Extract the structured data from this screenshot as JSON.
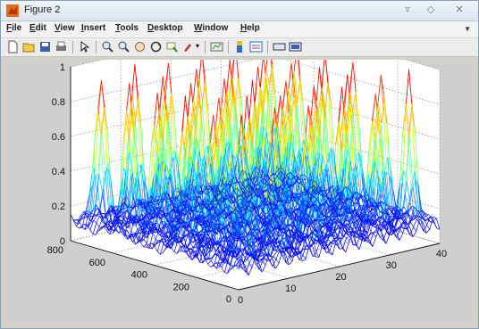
{
  "window": {
    "title": "Figure 2"
  },
  "menu": [
    "File",
    "Edit",
    "View",
    "Insert",
    "Tools",
    "Desktop",
    "Window",
    "Help"
  ],
  "toolbar": [
    "new-figure",
    "open-file",
    "save-figure",
    "print-figure",
    "edit-plot",
    "zoom-in",
    "zoom-out",
    "pan",
    "rotate-3d",
    "data-cursor",
    "brush",
    "link-plot",
    "colorbar",
    "legend",
    "hide-plot-tools",
    "show-plot-tools"
  ],
  "chart_data": {
    "type": "3d-mesh",
    "title": "",
    "x_ticks": [
      "0",
      "10",
      "20",
      "30",
      "40"
    ],
    "y_ticks": [
      "0",
      "200",
      "400",
      "600",
      "800"
    ],
    "z_ticks": [
      "0",
      "0.2",
      "0.4",
      "0.6",
      "0.8",
      "1"
    ],
    "xlim": [
      0,
      40
    ],
    "ylim": [
      0,
      800
    ],
    "zlim": [
      0,
      1
    ],
    "grid": true,
    "colormap": "jet",
    "peaks": {
      "rows": 6,
      "cols": 6,
      "peak_max": 0.95,
      "base_level": 0.12
    }
  }
}
